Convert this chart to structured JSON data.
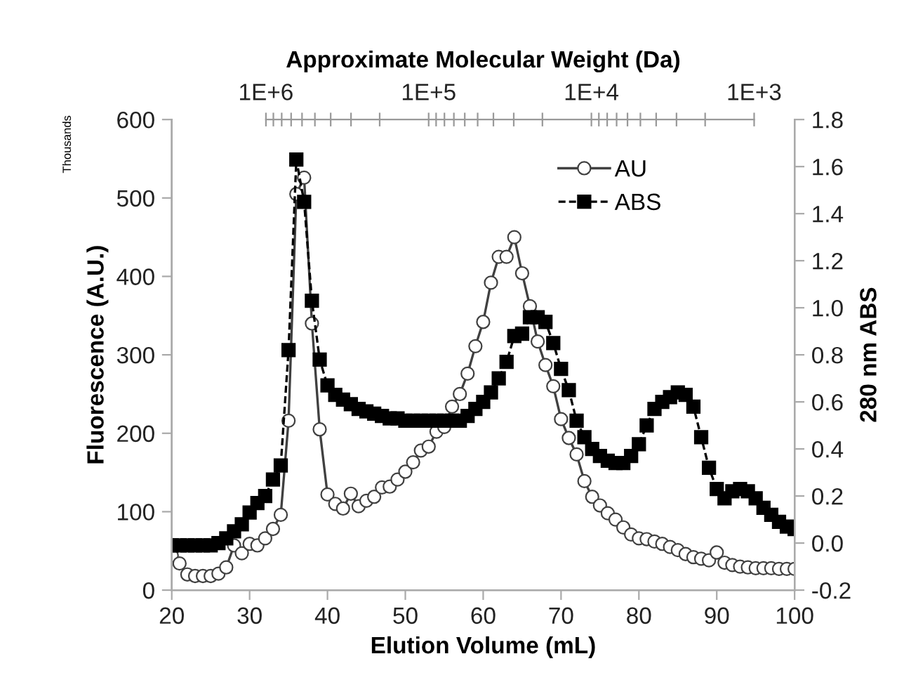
{
  "chart_data": {
    "type": "line",
    "xlabel": "Elution Volume (mL)",
    "ylabel": "Fluorescence (A.U.)",
    "y2label": "280 nm ABS",
    "x2label": "Approximate Molecular Weight (Da)",
    "annotations": [
      "Thousands"
    ],
    "x": [
      20,
      21,
      22,
      23,
      24,
      25,
      26,
      27,
      28,
      29,
      30,
      31,
      32,
      33,
      34,
      35,
      36,
      37,
      38,
      39,
      40,
      41,
      42,
      43,
      44,
      45,
      46,
      47,
      48,
      49,
      50,
      51,
      52,
      53,
      54,
      55,
      56,
      57,
      58,
      59,
      60,
      61,
      62,
      63,
      64,
      65,
      66,
      67,
      68,
      69,
      70,
      71,
      72,
      73,
      74,
      75,
      76,
      77,
      78,
      79,
      80,
      81,
      82,
      83,
      84,
      85,
      86,
      87,
      88,
      89,
      90,
      91,
      92,
      93,
      94,
      95,
      96,
      97,
      98,
      99,
      100
    ],
    "series": [
      {
        "name": "AU",
        "color": "#404040",
        "marker": "circle",
        "line_style": "solid",
        "values": [
          44,
          34,
          20,
          18,
          18,
          18,
          21,
          29,
          57,
          47,
          59,
          57,
          66,
          78,
          96,
          216,
          505,
          526,
          340,
          205,
          122,
          110,
          104,
          123,
          107,
          114,
          119,
          131,
          132,
          141,
          151,
          163,
          178,
          183,
          202,
          208,
          234,
          250,
          276,
          311,
          342,
          392,
          425,
          425,
          450,
          404,
          362,
          317,
          287,
          260,
          218,
          194,
          173,
          139,
          119,
          108,
          98,
          90,
          80,
          71,
          66,
          65,
          62,
          59,
          55,
          51,
          46,
          42,
          40,
          38,
          48,
          35,
          32,
          30,
          29,
          28,
          28,
          28,
          27,
          27,
          27
        ]
      },
      {
        "name": "ABS",
        "color": "#000000",
        "marker": "square",
        "line_style": "dashed",
        "axis": "y2",
        "values": [
          -0.01,
          -0.01,
          -0.01,
          -0.01,
          -0.01,
          -0.01,
          0.0,
          0.02,
          0.05,
          0.08,
          0.13,
          0.17,
          0.2,
          0.27,
          0.33,
          0.82,
          1.63,
          1.45,
          1.03,
          0.78,
          0.67,
          0.63,
          0.61,
          0.59,
          0.57,
          0.56,
          0.55,
          0.54,
          0.53,
          0.53,
          0.52,
          0.52,
          0.52,
          0.52,
          0.52,
          0.52,
          0.52,
          0.52,
          0.54,
          0.57,
          0.6,
          0.64,
          0.7,
          0.77,
          0.88,
          0.89,
          0.96,
          0.96,
          0.94,
          0.85,
          0.74,
          0.65,
          0.52,
          0.45,
          0.4,
          0.37,
          0.35,
          0.34,
          0.34,
          0.37,
          0.42,
          0.5,
          0.57,
          0.6,
          0.62,
          0.64,
          0.63,
          0.58,
          0.45,
          0.32,
          0.23,
          0.19,
          0.22,
          0.23,
          0.22,
          0.19,
          0.15,
          0.12,
          0.09,
          0.07,
          0.06
        ]
      }
    ],
    "xlim": [
      20,
      100
    ],
    "xticks": [
      20,
      30,
      40,
      50,
      60,
      70,
      80,
      90,
      100
    ],
    "ylim": [
      0,
      600
    ],
    "yticks": [
      0,
      100,
      200,
      300,
      400,
      500,
      600
    ],
    "y2lim": [
      -0.2,
      1.8
    ],
    "y2ticks": [
      -0.2,
      {
        "value": 0,
        "label": "0.0"
      },
      0.2,
      0.4,
      0.6,
      0.8,
      {
        "value": 1,
        "label": "1.0"
      },
      1.2,
      1.4,
      1.6,
      1.8
    ],
    "x2lim": [
      3790000,
      564
    ],
    "x2ticks": [
      {
        "value": 1000000,
        "label": "1E+6"
      },
      {
        "value": 900000,
        "label": null
      },
      {
        "value": 800000,
        "label": null
      },
      {
        "value": 700000,
        "label": null
      },
      {
        "value": 600000,
        "label": null
      },
      {
        "value": 500000,
        "label": null
      },
      {
        "value": 400000,
        "label": null
      },
      {
        "value": 300000,
        "label": null
      },
      {
        "value": 200000,
        "label": null
      },
      {
        "value": 100000,
        "label": "1E+5"
      },
      {
        "value": 90000,
        "label": null
      },
      {
        "value": 80000,
        "label": null
      },
      {
        "value": 70000,
        "label": null
      },
      {
        "value": 60000,
        "label": null
      },
      {
        "value": 50000,
        "label": null
      },
      {
        "value": 40000,
        "label": null
      },
      {
        "value": 30000,
        "label": null
      },
      {
        "value": 20000,
        "label": null
      },
      {
        "value": 10000,
        "label": "1E+4"
      },
      {
        "value": 9000,
        "label": null
      },
      {
        "value": 8000,
        "label": null
      },
      {
        "value": 7000,
        "label": null
      },
      {
        "value": 6000,
        "label": null
      },
      {
        "value": 5000,
        "label": null
      },
      {
        "value": 4000,
        "label": null
      },
      {
        "value": 3000,
        "label": null
      },
      {
        "value": 2000,
        "label": null
      },
      {
        "value": 1000,
        "label": "1E+3"
      }
    ],
    "log": "x2",
    "grid": false,
    "legend": "top right"
  }
}
